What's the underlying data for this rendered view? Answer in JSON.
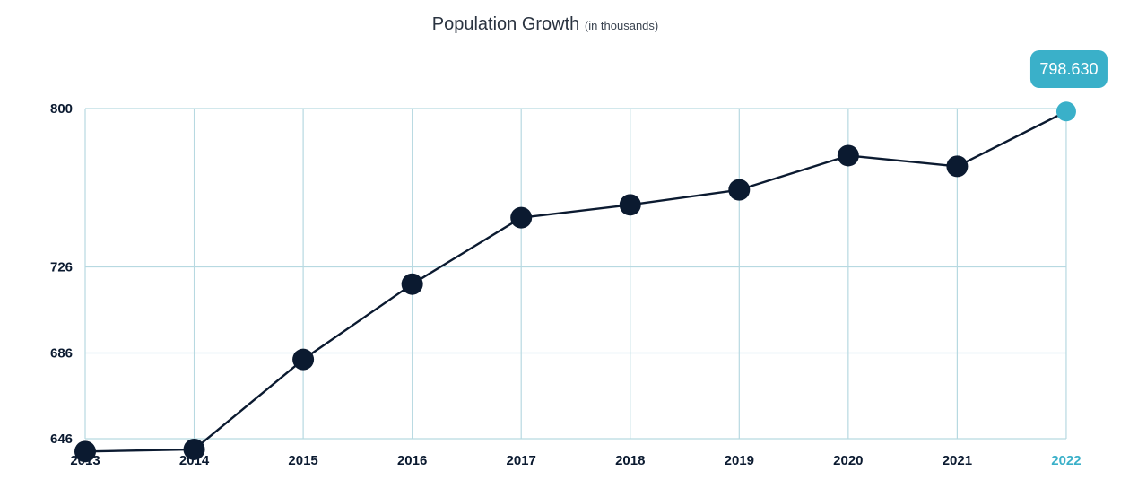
{
  "chart_data": {
    "type": "line",
    "title": "Population Growth",
    "subtitle": "(in thousands)",
    "x": [
      "2013",
      "2014",
      "2015",
      "2016",
      "2017",
      "2018",
      "2019",
      "2020",
      "2021",
      "2022"
    ],
    "series": [
      {
        "values": [
          640,
          641,
          683,
          718,
          749,
          755,
          762,
          778,
          773,
          798.63
        ]
      }
    ],
    "yticks": [
      "646",
      "686",
      "726",
      "800"
    ],
    "ytick_values": [
      646,
      686,
      726,
      800
    ],
    "highlight": {
      "index": 9,
      "label": "798.630"
    },
    "grid": true,
    "colors": {
      "line": "#0b1a30",
      "grid": "#b7d9e1",
      "highlight": "#3ab0c9"
    }
  }
}
